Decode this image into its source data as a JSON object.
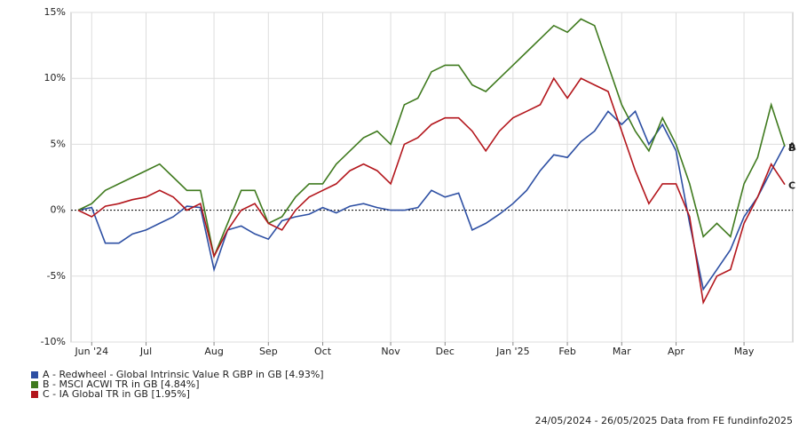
{
  "chart_data": {
    "type": "line",
    "categories": [
      null,
      "Jun '24",
      null,
      null,
      null,
      "Jul",
      null,
      null,
      null,
      null,
      "Aug",
      null,
      null,
      null,
      "Sep",
      null,
      null,
      null,
      "Oct",
      null,
      null,
      null,
      null,
      "Nov",
      null,
      null,
      null,
      "Dec",
      null,
      null,
      null,
      null,
      "Jan '25",
      null,
      null,
      null,
      "Feb",
      null,
      null,
      null,
      "Mar",
      null,
      null,
      null,
      "Apr",
      null,
      null,
      null,
      null,
      "May",
      null,
      null,
      null
    ],
    "series": [
      {
        "name": "A - Redwheel - Global Intrinsic Value R GBP in GB [4.93%]",
        "end_label": "A",
        "color": "#2d4fa3",
        "values": [
          0,
          0.2,
          -2.5,
          -2.5,
          -1.8,
          -1.5,
          -1,
          -0.5,
          0.3,
          0.2,
          -4.5,
          -1.5,
          -1.2,
          -1.8,
          -2.2,
          -0.8,
          -0.5,
          -0.3,
          0.2,
          -0.2,
          0.3,
          0.5,
          0.2,
          0,
          0,
          0.2,
          1.5,
          1,
          1.3,
          -1.5,
          -1,
          -0.3,
          0.5,
          1.5,
          3,
          4.2,
          4,
          5.2,
          6,
          7.5,
          6.5,
          7.5,
          5,
          6.5,
          4.5,
          -1,
          -6,
          -4.5,
          -3,
          -0.5,
          1,
          3,
          4.93
        ]
      },
      {
        "name": "B - MSCI ACWI TR in GB [4.84%]",
        "end_label": "B",
        "color": "#3f7a1e",
        "values": [
          0,
          0.5,
          1.5,
          2,
          2.5,
          3,
          3.5,
          2.5,
          1.5,
          1.5,
          -3.5,
          -1,
          1.5,
          1.5,
          -1,
          -0.5,
          1,
          2,
          2,
          3.5,
          4.5,
          5.5,
          6,
          5,
          8,
          8.5,
          10.5,
          11,
          11,
          9.5,
          9,
          10,
          11,
          12,
          13,
          14,
          13.5,
          14.5,
          14,
          11,
          8,
          6,
          4.5,
          7,
          5,
          2,
          -2,
          -1,
          -2,
          2,
          4,
          8,
          4.84
        ]
      },
      {
        "name": "C - IA Global TR in GB [1.95%]",
        "end_label": "C",
        "color": "#b3161c",
        "values": [
          0,
          -0.5,
          0.3,
          0.5,
          0.8,
          1,
          1.5,
          1,
          0,
          0.5,
          -3.5,
          -1.5,
          0,
          0.5,
          -1,
          -1.5,
          0,
          1,
          1.5,
          2,
          3,
          3.5,
          3,
          2,
          5,
          5.5,
          6.5,
          7,
          7,
          6,
          4.5,
          6,
          7,
          7.5,
          8,
          10,
          8.5,
          10,
          9.5,
          9,
          6,
          3,
          0.5,
          2,
          2,
          -0.5,
          -7,
          -5,
          -4.5,
          -1,
          1,
          3.5,
          1.95
        ]
      }
    ],
    "ylim": [
      -10,
      15
    ],
    "yticks": [
      {
        "value": -10,
        "label": "-10%"
      },
      {
        "value": -5,
        "label": "-5%"
      },
      {
        "value": 0,
        "label": "0%"
      },
      {
        "value": 5,
        "label": "5%"
      },
      {
        "value": 10,
        "label": "10%"
      },
      {
        "value": 15,
        "label": "15%"
      }
    ],
    "grid": true,
    "footer": "24/05/2024 - 26/05/2025 Data from FE fundinfo2025"
  }
}
